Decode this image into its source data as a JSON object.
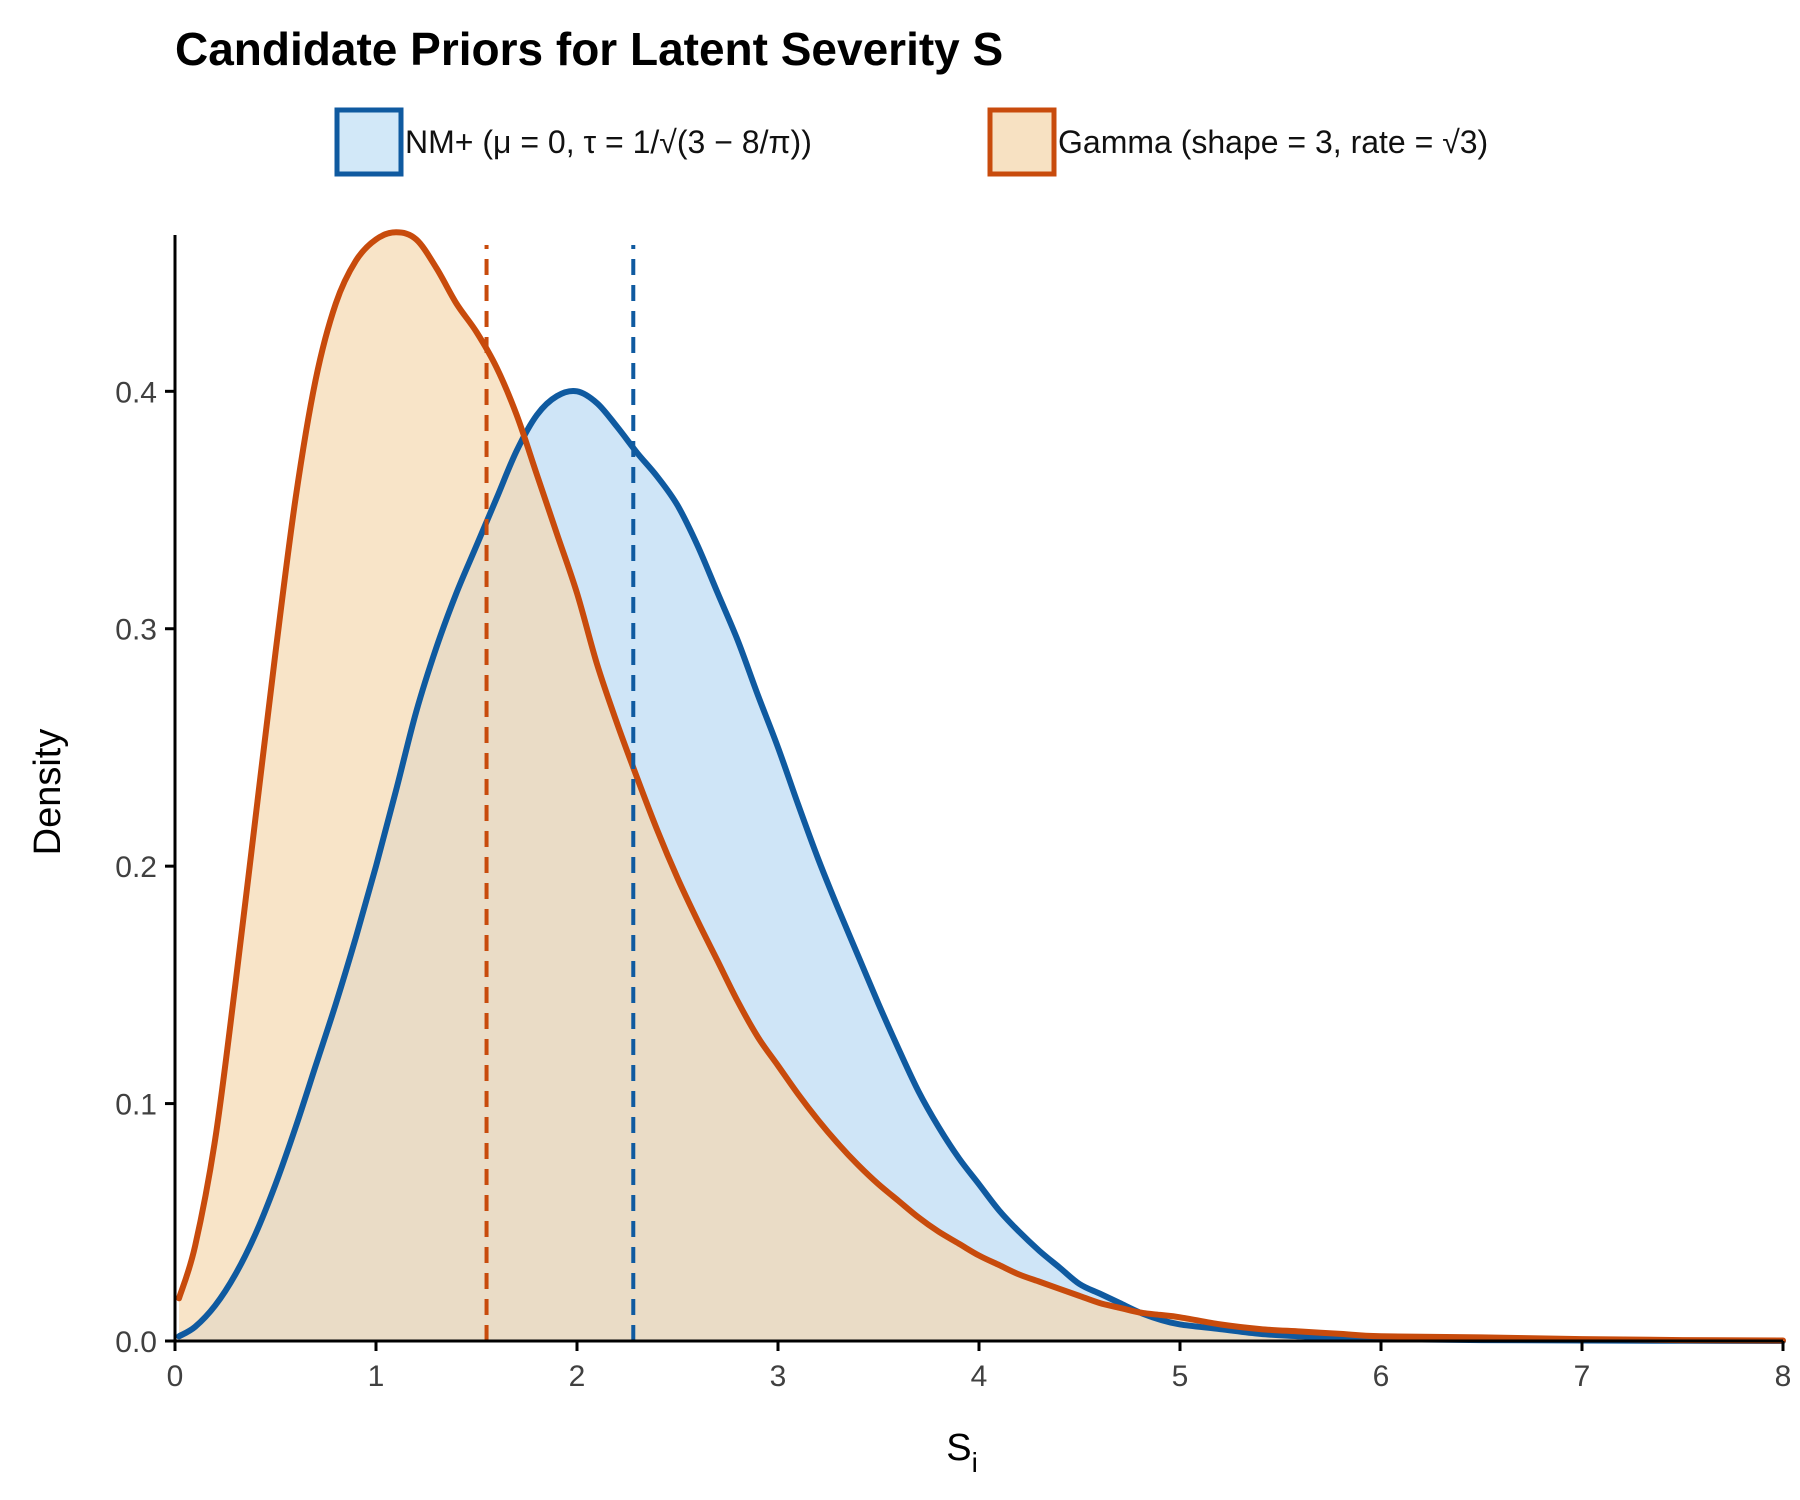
{
  "chart_data": {
    "type": "area",
    "title": "Candidate Priors for Latent Severity S",
    "xlabel_main": "S",
    "xlabel_sub": "i",
    "ylabel": "Density",
    "xlim": [
      0,
      8
    ],
    "ylim": [
      0,
      0.465
    ],
    "x_ticks": [
      0,
      1,
      2,
      3,
      4,
      5,
      6,
      7,
      8
    ],
    "x_tick_labels": [
      "0",
      "1",
      "2",
      "3",
      "4",
      "5",
      "6",
      "7",
      "8"
    ],
    "y_ticks": [
      0,
      0.1,
      0.2,
      0.3,
      0.4
    ],
    "y_tick_labels": [
      "0.0",
      "0.1",
      "0.2",
      "0.3",
      "0.4"
    ],
    "grid": false,
    "legend_position": "top",
    "series": [
      {
        "name": "NM+  (μ = 0,  τ = 1/√(3 − 8/π))",
        "line_color": "#0f5aa0",
        "fill_color": "#a8d0f0",
        "fill_opacity": 0.55,
        "mean_marker": 2.28,
        "x": [
          0.02,
          0.1,
          0.2,
          0.3,
          0.4,
          0.5,
          0.6,
          0.7,
          0.8,
          0.9,
          1.0,
          1.1,
          1.2,
          1.3,
          1.4,
          1.5,
          1.6,
          1.7,
          1.8,
          1.9,
          2.0,
          2.1,
          2.2,
          2.3,
          2.4,
          2.5,
          2.6,
          2.7,
          2.8,
          2.9,
          3.0,
          3.1,
          3.2,
          3.3,
          3.4,
          3.5,
          3.6,
          3.7,
          3.8,
          3.9,
          4.0,
          4.1,
          4.2,
          4.3,
          4.4,
          4.5,
          4.6,
          4.7,
          4.8,
          4.9,
          5.0,
          5.2,
          5.4,
          5.6,
          5.8,
          6.0,
          6.5,
          7.0,
          7.5,
          8.0
        ],
        "y": [
          0.002,
          0.006,
          0.015,
          0.028,
          0.045,
          0.066,
          0.09,
          0.116,
          0.142,
          0.17,
          0.2,
          0.232,
          0.265,
          0.292,
          0.315,
          0.335,
          0.355,
          0.375,
          0.39,
          0.398,
          0.4,
          0.395,
          0.385,
          0.374,
          0.364,
          0.352,
          0.335,
          0.315,
          0.295,
          0.272,
          0.25,
          0.226,
          0.203,
          0.182,
          0.162,
          0.142,
          0.123,
          0.105,
          0.09,
          0.077,
          0.066,
          0.055,
          0.046,
          0.038,
          0.031,
          0.024,
          0.02,
          0.016,
          0.012,
          0.009,
          0.007,
          0.005,
          0.003,
          0.002,
          0.001,
          0.0008,
          0.0004,
          0.0002,
          0.0001,
          0.0
        ]
      },
      {
        "name": "Gamma (shape = 3, rate = √3)",
        "line_color": "#c84b0c",
        "fill_color": "#f5d9b0",
        "fill_opacity": 0.7,
        "mean_marker": 1.55,
        "x": [
          0.02,
          0.1,
          0.2,
          0.3,
          0.4,
          0.5,
          0.6,
          0.7,
          0.8,
          0.9,
          1.0,
          1.1,
          1.2,
          1.3,
          1.4,
          1.5,
          1.6,
          1.7,
          1.8,
          1.9,
          2.0,
          2.1,
          2.2,
          2.3,
          2.4,
          2.5,
          2.6,
          2.7,
          2.8,
          2.9,
          3.0,
          3.1,
          3.2,
          3.3,
          3.4,
          3.5,
          3.6,
          3.7,
          3.8,
          3.9,
          4.0,
          4.1,
          4.2,
          4.3,
          4.4,
          4.5,
          4.6,
          4.7,
          4.8,
          4.9,
          5.0,
          5.2,
          5.4,
          5.6,
          5.8,
          6.0,
          6.5,
          7.0,
          7.5,
          8.0
        ],
        "y": [
          0.018,
          0.04,
          0.085,
          0.15,
          0.22,
          0.29,
          0.355,
          0.405,
          0.437,
          0.455,
          0.464,
          0.467,
          0.464,
          0.452,
          0.437,
          0.425,
          0.41,
          0.39,
          0.365,
          0.34,
          0.315,
          0.285,
          0.26,
          0.237,
          0.215,
          0.195,
          0.177,
          0.16,
          0.143,
          0.128,
          0.116,
          0.104,
          0.093,
          0.083,
          0.074,
          0.066,
          0.059,
          0.052,
          0.046,
          0.041,
          0.036,
          0.032,
          0.028,
          0.025,
          0.022,
          0.019,
          0.016,
          0.014,
          0.012,
          0.011,
          0.01,
          0.007,
          0.005,
          0.004,
          0.003,
          0.002,
          0.0015,
          0.0008,
          0.0004,
          0.0002
        ]
      }
    ]
  }
}
